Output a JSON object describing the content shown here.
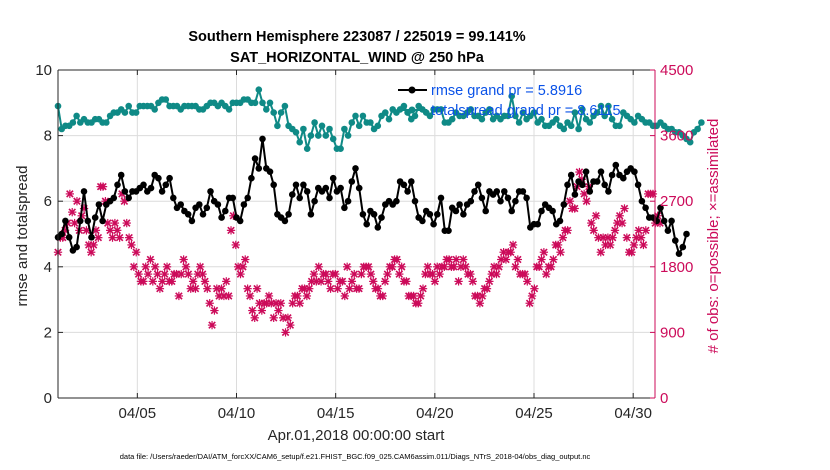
{
  "chart_data": {
    "type": "line",
    "title_line1": "Southern Hemisphere 223087 / 225019 = 99.141%",
    "title_line2": "SAT_HORIZONTAL_WIND @ 250 hPa",
    "xlabel": "Apr.01,2018 00:00:00 start",
    "ylabel_left": "rmse and totalspread",
    "ylabel_right": "# of obs: o=possible; ×=assimilated",
    "xticks": [
      "04/05",
      "04/10",
      "04/15",
      "04/20",
      "04/25",
      "04/30"
    ],
    "xtick_days": [
      5,
      10,
      15,
      20,
      25,
      30
    ],
    "xlim": [
      1.0,
      31.1
    ],
    "ylim_left": [
      0,
      10
    ],
    "yticks_left": [
      "0",
      "2",
      "4",
      "6",
      "8",
      "10"
    ],
    "ylim_right": [
      0,
      4500
    ],
    "yticks_right": [
      "0",
      "900",
      "1800",
      "2700",
      "3600",
      "4500"
    ],
    "footnote": "data file: /Users/raeder/DAI/ATM_forcXX/CAM6_setup/f.e21.FHIST_BGC.f09_025.CAM6assim.011/Diags_NTrS_2018-04/obs_diag_output.nc",
    "colors": {
      "rmse": "#000000",
      "spread": "#0f8a86",
      "obs": "#cc0b5a",
      "legend_text": "#0a52e8",
      "right_axis": "#cc0b5a"
    },
    "grid": true,
    "legend_position": "top-right",
    "series": [
      {
        "name": "rmse",
        "legend": "rmse grand pr = 5.8916",
        "values": [
          4.9,
          5.0,
          5.4,
          4.9,
          4.5,
          4.6,
          5.4,
          6.3,
          5.4,
          4.9,
          5.5,
          5.9,
          5.4,
          5.9,
          6.0,
          6.1,
          6.5,
          6.8,
          6.3,
          6.1,
          6.3,
          6.3,
          6.4,
          6.5,
          6.3,
          6.4,
          6.8,
          6.7,
          6.3,
          6.5,
          6.7,
          6.1,
          5.8,
          5.9,
          5.7,
          5.6,
          5.4,
          5.8,
          5.9,
          5.6,
          5.8,
          6.3,
          6.0,
          5.9,
          5.5,
          5.7,
          6.1,
          6.1,
          5.5,
          5.4,
          5.9,
          6.1,
          6.7,
          7.3,
          7.0,
          7.9,
          7.0,
          6.9,
          6.5,
          5.6,
          5.5,
          5.4,
          5.6,
          6.2,
          6.5,
          6.1,
          6.5,
          6.3,
          5.6,
          6.0,
          6.4,
          6.3,
          6.4,
          6.1,
          6.7,
          6.3,
          6.4,
          5.8,
          6.0,
          6.6,
          7.0,
          6.4,
          5.6,
          5.3,
          5.7,
          5.6,
          5.2,
          5.5,
          5.9,
          6.0,
          5.9,
          6.0,
          6.6,
          6.5,
          6.3,
          6.6,
          6.0,
          5.5,
          5.4,
          5.7,
          5.6,
          5.3,
          5.6,
          6.1,
          5.1,
          5.1,
          5.8,
          5.7,
          5.9,
          5.6,
          5.9,
          6.0,
          6.3,
          6.5,
          6.1,
          5.7,
          6.3,
          6.2,
          6.3,
          6.0,
          6.3,
          6.1,
          5.7,
          6.0,
          6.3,
          6.3,
          6.1,
          5.2,
          5.3,
          5.3,
          5.7,
          5.9,
          5.8,
          5.7,
          5.3,
          5.4,
          5.9,
          6.5,
          6.8,
          6.2,
          6.6,
          6.5,
          6.9,
          6.3,
          6.6,
          6.6,
          6.9,
          6.5,
          6.3,
          6.8,
          7.1,
          6.8,
          6.7,
          6.9,
          7.0,
          6.9,
          6.5,
          6.0,
          5.8,
          5.5,
          5.5,
          5.4,
          5.8,
          5.4,
          5.1,
          5.4,
          4.8,
          4.4,
          4.6,
          5.0
        ],
        "x_start": 1.0,
        "x_step": 0.1875
      },
      {
        "name": "totalspread",
        "legend": "totalspread grand pr = 8.6115",
        "values": [
          8.9,
          8.2,
          8.3,
          8.3,
          8.4,
          8.6,
          8.4,
          8.5,
          8.4,
          8.4,
          8.5,
          8.5,
          8.4,
          8.4,
          8.6,
          8.7,
          8.7,
          8.8,
          8.7,
          8.9,
          8.7,
          8.7,
          8.9,
          8.9,
          8.9,
          8.9,
          8.8,
          9.0,
          9.1,
          9.1,
          8.9,
          8.9,
          8.9,
          8.8,
          8.9,
          8.9,
          8.9,
          8.9,
          8.8,
          8.8,
          8.9,
          9.0,
          9.0,
          8.9,
          9.0,
          8.9,
          8.8,
          9.0,
          9.0,
          9.0,
          9.1,
          9.1,
          9.0,
          9.0,
          9.4,
          9.0,
          8.8,
          9.0,
          8.7,
          8.3,
          8.7,
          8.9,
          8.3,
          8.2,
          8.1,
          7.8,
          8.2,
          7.6,
          8.0,
          8.4,
          8.0,
          8.3,
          8.0,
          8.2,
          7.9,
          7.6,
          7.6,
          8.2,
          8.0,
          8.4,
          8.6,
          8.3,
          8.6,
          8.4,
          8.4,
          8.2,
          8.3,
          8.6,
          8.7,
          8.5,
          8.8,
          8.7,
          8.8,
          8.9,
          8.7,
          8.5,
          8.6,
          8.9,
          8.8,
          8.7,
          8.6,
          8.8,
          8.8,
          8.8,
          8.4,
          8.4,
          8.5,
          8.7,
          8.6,
          8.6,
          8.7,
          8.8,
          8.6,
          8.6,
          8.5,
          8.7,
          8.8,
          8.5,
          8.6,
          8.5,
          8.6,
          8.6,
          9.2,
          8.6,
          8.4,
          8.7,
          8.5,
          8.6,
          8.7,
          8.4,
          8.5,
          8.3,
          8.3,
          8.4,
          8.5,
          8.3,
          8.2,
          8.4,
          8.3,
          8.7,
          8.2,
          8.8,
          8.5,
          8.4,
          8.6,
          8.7,
          8.9,
          8.6,
          8.9,
          8.5,
          8.3,
          8.3,
          8.7,
          8.6,
          8.5,
          8.4,
          8.6,
          8.5,
          8.4,
          8.4,
          8.3,
          8.3,
          8.4,
          8.3,
          8.2,
          8.2,
          8.1,
          8.1,
          8.0,
          7.9,
          7.8,
          8.1,
          8.2,
          8.4
        ],
        "x_start": 1.0,
        "x_step": 0.1875
      },
      {
        "name": "obs_assimilated",
        "axis": "right",
        "values": [
          2000,
          2200,
          2200,
          2300,
          2400,
          2800,
          2550,
          2400,
          2700,
          2300,
          2500,
          2600,
          2300,
          2100,
          2000,
          2100,
          2300,
          2200,
          2900,
          2900,
          2700,
          2400,
          2300,
          2200,
          2400,
          2300,
          2200,
          2800,
          2700,
          2400,
          2200,
          2100,
          1800,
          2000,
          1700,
          1600,
          1600,
          1800,
          1700,
          1900,
          1600,
          1800,
          1700,
          1500,
          1600,
          1700,
          1800,
          1600,
          1600,
          1700,
          1700,
          1400,
          1700,
          1900,
          1800,
          1700,
          1500,
          1600,
          1500,
          1700,
          1800,
          1700,
          1600,
          1500,
          1300,
          1000,
          1200,
          1500,
          1400,
          1500,
          1400,
          1600,
          1400,
          2300,
          2500,
          2100,
          1800,
          1700,
          1800,
          1900,
          1500,
          1400,
          1200,
          1100,
          1500,
          1300,
          1200,
          1300,
          1300,
          1400,
          1300,
          1100,
          1300,
          1200,
          1300,
          1100,
          900,
          1100,
          1000,
          1300,
          1400,
          1400,
          1300,
          1500,
          1500,
          1400,
          1500,
          1600,
          1700,
          1600,
          1800,
          1600,
          1700,
          1700,
          1600,
          1500,
          1700,
          1700,
          1500,
          1600,
          1600,
          1400,
          1800,
          1500,
          1600,
          1700,
          1500,
          1500,
          1700,
          1800,
          1800,
          1800,
          1700,
          1600,
          1500,
          1500,
          1400,
          1400,
          1600,
          1700,
          1800,
          1800,
          1900,
          1900,
          1700,
          1800,
          1600,
          1600,
          1400,
          1400,
          1400,
          1300,
          1300,
          1400,
          1500,
          1700,
          1800,
          1700,
          1700,
          1600,
          1800,
          1700,
          1800,
          1800,
          1900,
          1900,
          1800,
          1800,
          1900,
          1600,
          1800,
          1900,
          1800,
          1700,
          1700,
          1600,
          1400,
          1400,
          1300,
          1400,
          1500,
          1500,
          1600,
          1700,
          1800,
          1700,
          1800,
          1900,
          2000,
          1900,
          2000,
          2000,
          2100,
          1800,
          1900,
          1700,
          1700,
          1700,
          1600,
          1300,
          1400,
          1500,
          1800,
          1800,
          1900,
          2000,
          1700,
          1800,
          1800,
          1900,
          2100,
          2100,
          2000,
          2200,
          2300,
          2300,
          2700,
          2600,
          2600,
          2900,
          3100,
          3000,
          2800,
          2700,
          2900,
          2400,
          2300,
          2500,
          2200,
          2000,
          2200,
          2100,
          2200,
          2100,
          2200,
          2300,
          2400,
          2500,
          2400,
          2600,
          2200,
          2000,
          2000,
          2100,
          2200,
          2300,
          2200,
          2100,
          2300,
          2800,
          2800,
          2800,
          2400,
          2500,
          2400
        ],
        "x_start": 1.0,
        "x_step": 0.1195
      }
    ]
  }
}
